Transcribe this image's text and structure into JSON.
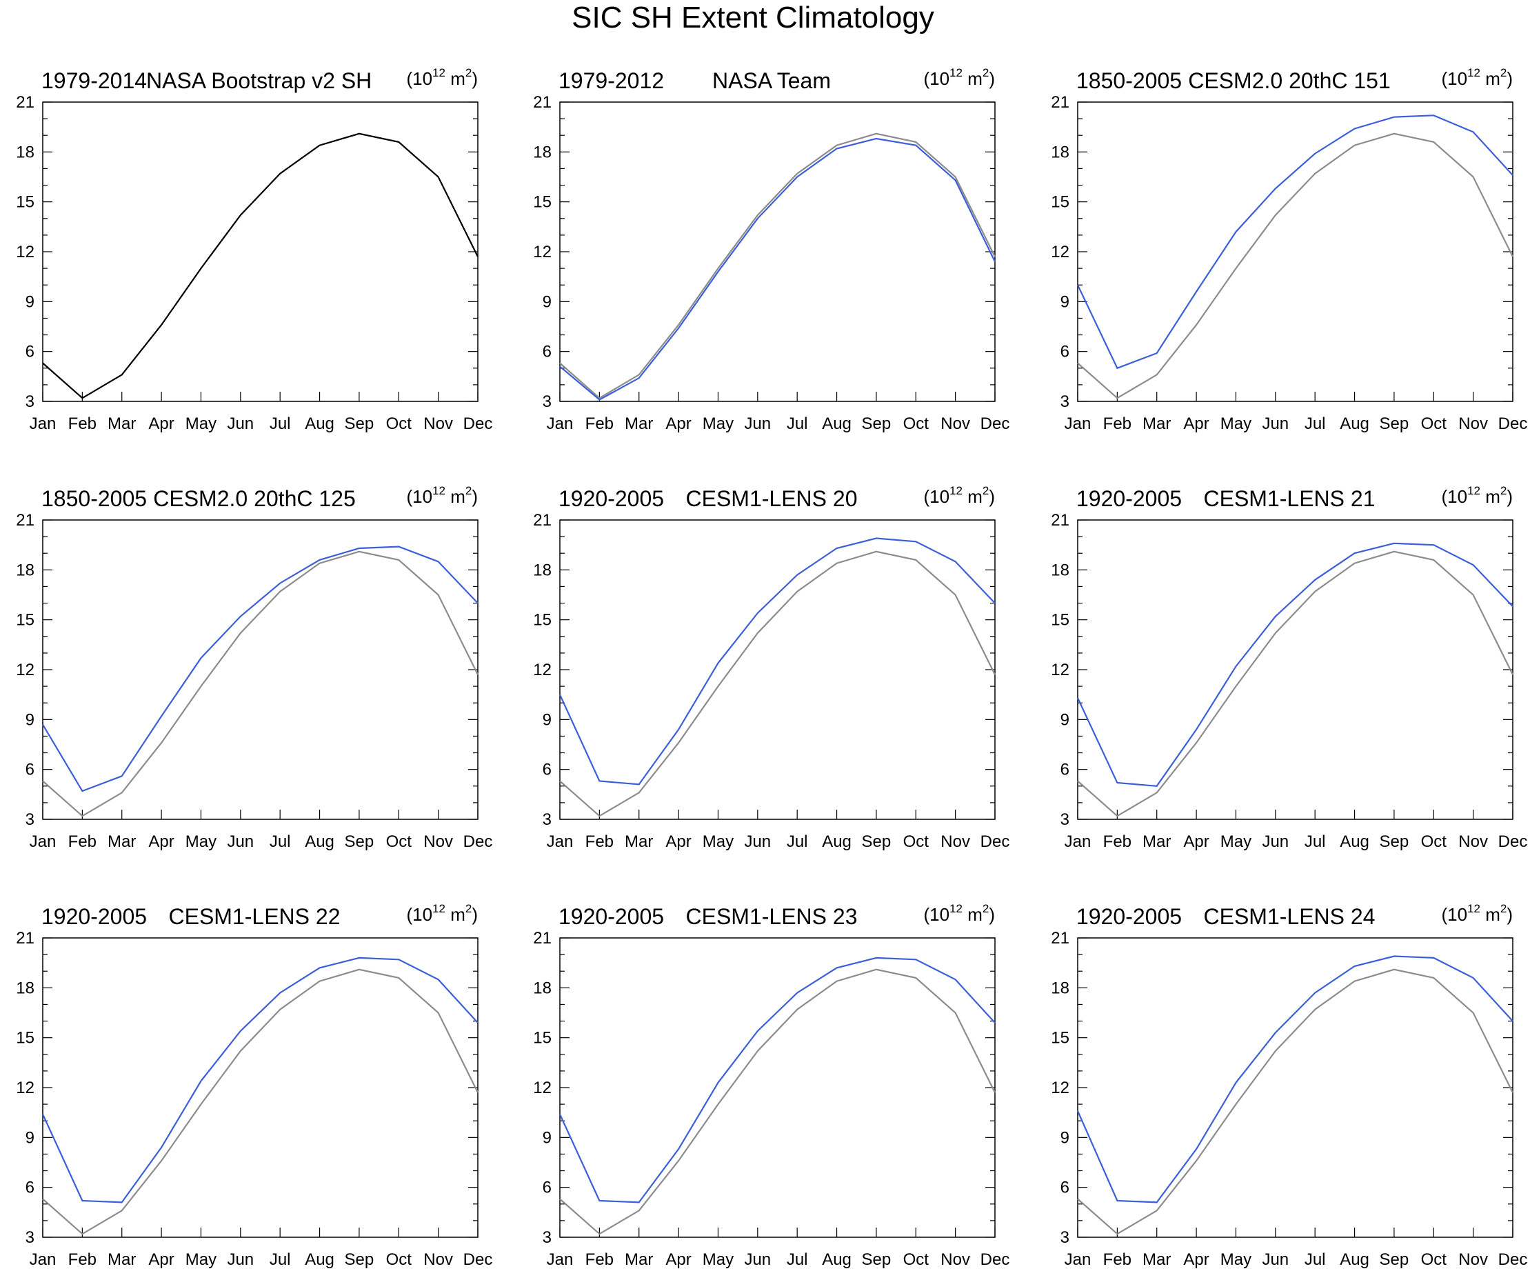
{
  "page_title": "SIC SH Extent Climatology",
  "colors": {
    "obs": "#000000",
    "reference": "#8c8c8c",
    "model": "#3b5fd9"
  },
  "chart_data": [
    {
      "type": "line",
      "period": "1979-2014",
      "name": "NASA Bootstrap v2 SH",
      "units": {
        "base": "10",
        "exponent": "12",
        "unit": "m",
        "unit_exponent": "2"
      },
      "x": [
        "Jan",
        "Feb",
        "Mar",
        "Apr",
        "May",
        "Jun",
        "Jul",
        "Aug",
        "Sep",
        "Oct",
        "Nov",
        "Dec"
      ],
      "ylim": [
        3,
        21
      ],
      "yticks": [
        3,
        6,
        9,
        12,
        15,
        18,
        21
      ],
      "series": [
        {
          "name": "NASA Bootstrap v2 SH",
          "role": "obs",
          "values": [
            5.3,
            3.2,
            4.6,
            7.6,
            11.0,
            14.2,
            16.7,
            18.4,
            19.1,
            18.6,
            16.5,
            11.7
          ]
        }
      ]
    },
    {
      "type": "line",
      "period": "1979-2012",
      "name": "NASA Team",
      "units": {
        "base": "10",
        "exponent": "12",
        "unit": "m",
        "unit_exponent": "2"
      },
      "x": [
        "Jan",
        "Feb",
        "Mar",
        "Apr",
        "May",
        "Jun",
        "Jul",
        "Aug",
        "Sep",
        "Oct",
        "Nov",
        "Dec"
      ],
      "ylim": [
        3,
        21
      ],
      "yticks": [
        3,
        6,
        9,
        12,
        15,
        18,
        21
      ],
      "series": [
        {
          "name": "NASA Bootstrap v2 SH",
          "role": "reference",
          "values": [
            5.3,
            3.2,
            4.6,
            7.6,
            11.0,
            14.2,
            16.7,
            18.4,
            19.1,
            18.6,
            16.5,
            11.7
          ]
        },
        {
          "name": "NASA Team",
          "role": "model",
          "values": [
            5.1,
            3.1,
            4.4,
            7.4,
            10.8,
            14.0,
            16.5,
            18.2,
            18.8,
            18.4,
            16.3,
            11.4
          ]
        }
      ]
    },
    {
      "type": "line",
      "period": "1850-2005",
      "name": "CESM2.0 20thC 151",
      "units": {
        "base": "10",
        "exponent": "12",
        "unit": "m",
        "unit_exponent": "2"
      },
      "x": [
        "Jan",
        "Feb",
        "Mar",
        "Apr",
        "May",
        "Jun",
        "Jul",
        "Aug",
        "Sep",
        "Oct",
        "Nov",
        "Dec"
      ],
      "ylim": [
        3,
        21
      ],
      "yticks": [
        3,
        6,
        9,
        12,
        15,
        18,
        21
      ],
      "series": [
        {
          "name": "NASA Bootstrap v2 SH",
          "role": "reference",
          "values": [
            5.3,
            3.2,
            4.6,
            7.6,
            11.0,
            14.2,
            16.7,
            18.4,
            19.1,
            18.6,
            16.5,
            11.7
          ]
        },
        {
          "name": "CESM2.0 20thC 151",
          "role": "model",
          "values": [
            10.0,
            5.0,
            5.9,
            9.6,
            13.2,
            15.8,
            17.9,
            19.4,
            20.1,
            20.2,
            19.2,
            16.6
          ]
        }
      ]
    },
    {
      "type": "line",
      "period": "1850-2005",
      "name": "CESM2.0 20thC 125",
      "units": {
        "base": "10",
        "exponent": "12",
        "unit": "m",
        "unit_exponent": "2"
      },
      "x": [
        "Jan",
        "Feb",
        "Mar",
        "Apr",
        "May",
        "Jun",
        "Jul",
        "Aug",
        "Sep",
        "Oct",
        "Nov",
        "Dec"
      ],
      "ylim": [
        3,
        21
      ],
      "yticks": [
        3,
        6,
        9,
        12,
        15,
        18,
        21
      ],
      "series": [
        {
          "name": "NASA Bootstrap v2 SH",
          "role": "reference",
          "values": [
            5.3,
            3.2,
            4.6,
            7.6,
            11.0,
            14.2,
            16.7,
            18.4,
            19.1,
            18.6,
            16.5,
            11.7
          ]
        },
        {
          "name": "CESM2.0 20thC 125",
          "role": "model",
          "values": [
            8.7,
            4.7,
            5.6,
            9.2,
            12.7,
            15.2,
            17.2,
            18.6,
            19.3,
            19.4,
            18.5,
            16.0
          ]
        }
      ]
    },
    {
      "type": "line",
      "period": "1920-2005",
      "name": "CESM1-LENS 20",
      "units": {
        "base": "10",
        "exponent": "12",
        "unit": "m",
        "unit_exponent": "2"
      },
      "x": [
        "Jan",
        "Feb",
        "Mar",
        "Apr",
        "May",
        "Jun",
        "Jul",
        "Aug",
        "Sep",
        "Oct",
        "Nov",
        "Dec"
      ],
      "ylim": [
        3,
        21
      ],
      "yticks": [
        3,
        6,
        9,
        12,
        15,
        18,
        21
      ],
      "series": [
        {
          "name": "NASA Bootstrap v2 SH",
          "role": "reference",
          "values": [
            5.3,
            3.2,
            4.6,
            7.6,
            11.0,
            14.2,
            16.7,
            18.4,
            19.1,
            18.6,
            16.5,
            11.7
          ]
        },
        {
          "name": "CESM1-LENS 20",
          "role": "model",
          "values": [
            10.5,
            5.3,
            5.1,
            8.4,
            12.4,
            15.4,
            17.7,
            19.3,
            19.9,
            19.7,
            18.5,
            16.0
          ]
        }
      ]
    },
    {
      "type": "line",
      "period": "1920-2005",
      "name": "CESM1-LENS 21",
      "units": {
        "base": "10",
        "exponent": "12",
        "unit": "m",
        "unit_exponent": "2"
      },
      "x": [
        "Jan",
        "Feb",
        "Mar",
        "Apr",
        "May",
        "Jun",
        "Jul",
        "Aug",
        "Sep",
        "Oct",
        "Nov",
        "Dec"
      ],
      "ylim": [
        3,
        21
      ],
      "yticks": [
        3,
        6,
        9,
        12,
        15,
        18,
        21
      ],
      "series": [
        {
          "name": "NASA Bootstrap v2 SH",
          "role": "reference",
          "values": [
            5.3,
            3.2,
            4.6,
            7.6,
            11.0,
            14.2,
            16.7,
            18.4,
            19.1,
            18.6,
            16.5,
            11.7
          ]
        },
        {
          "name": "CESM1-LENS 21",
          "role": "model",
          "values": [
            10.3,
            5.2,
            5.0,
            8.4,
            12.2,
            15.2,
            17.4,
            19.0,
            19.6,
            19.5,
            18.3,
            15.8
          ]
        }
      ]
    },
    {
      "type": "line",
      "period": "1920-2005",
      "name": "CESM1-LENS 22",
      "units": {
        "base": "10",
        "exponent": "12",
        "unit": "m",
        "unit_exponent": "2"
      },
      "x": [
        "Jan",
        "Feb",
        "Mar",
        "Apr",
        "May",
        "Jun",
        "Jul",
        "Aug",
        "Sep",
        "Oct",
        "Nov",
        "Dec"
      ],
      "ylim": [
        3,
        21
      ],
      "yticks": [
        3,
        6,
        9,
        12,
        15,
        18,
        21
      ],
      "series": [
        {
          "name": "NASA Bootstrap v2 SH",
          "role": "reference",
          "values": [
            5.3,
            3.2,
            4.6,
            7.6,
            11.0,
            14.2,
            16.7,
            18.4,
            19.1,
            18.6,
            16.5,
            11.7
          ]
        },
        {
          "name": "CESM1-LENS 22",
          "role": "model",
          "values": [
            10.4,
            5.2,
            5.1,
            8.4,
            12.4,
            15.4,
            17.7,
            19.2,
            19.8,
            19.7,
            18.5,
            15.9
          ]
        }
      ]
    },
    {
      "type": "line",
      "period": "1920-2005",
      "name": "CESM1-LENS 23",
      "units": {
        "base": "10",
        "exponent": "12",
        "unit": "m",
        "unit_exponent": "2"
      },
      "x": [
        "Jan",
        "Feb",
        "Mar",
        "Apr",
        "May",
        "Jun",
        "Jul",
        "Aug",
        "Sep",
        "Oct",
        "Nov",
        "Dec"
      ],
      "ylim": [
        3,
        21
      ],
      "yticks": [
        3,
        6,
        9,
        12,
        15,
        18,
        21
      ],
      "series": [
        {
          "name": "NASA Bootstrap v2 SH",
          "role": "reference",
          "values": [
            5.3,
            3.2,
            4.6,
            7.6,
            11.0,
            14.2,
            16.7,
            18.4,
            19.1,
            18.6,
            16.5,
            11.7
          ]
        },
        {
          "name": "CESM1-LENS 23",
          "role": "model",
          "values": [
            10.4,
            5.2,
            5.1,
            8.3,
            12.3,
            15.4,
            17.7,
            19.2,
            19.8,
            19.7,
            18.5,
            15.9
          ]
        }
      ]
    },
    {
      "type": "line",
      "period": "1920-2005",
      "name": "CESM1-LENS 24",
      "units": {
        "base": "10",
        "exponent": "12",
        "unit": "m",
        "unit_exponent": "2"
      },
      "x": [
        "Jan",
        "Feb",
        "Mar",
        "Apr",
        "May",
        "Jun",
        "Jul",
        "Aug",
        "Sep",
        "Oct",
        "Nov",
        "Dec"
      ],
      "ylim": [
        3,
        21
      ],
      "yticks": [
        3,
        6,
        9,
        12,
        15,
        18,
        21
      ],
      "series": [
        {
          "name": "NASA Bootstrap v2 SH",
          "role": "reference",
          "values": [
            5.3,
            3.2,
            4.6,
            7.6,
            11.0,
            14.2,
            16.7,
            18.4,
            19.1,
            18.6,
            16.5,
            11.7
          ]
        },
        {
          "name": "CESM1-LENS 24",
          "role": "model",
          "values": [
            10.6,
            5.2,
            5.1,
            8.3,
            12.3,
            15.3,
            17.7,
            19.3,
            19.9,
            19.8,
            18.6,
            16.0
          ]
        }
      ]
    }
  ]
}
